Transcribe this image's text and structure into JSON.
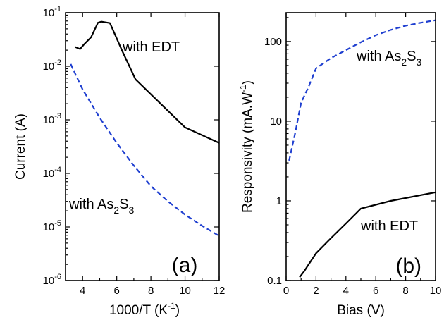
{
  "chart_data": [
    {
      "type": "line",
      "panel_label": "(a)",
      "xlabel_main": "1000/T (K",
      "xlabel_sup": "-1",
      "xlabel_end": ")",
      "ylabel": "Current (A)",
      "xlim": [
        3,
        12
      ],
      "ylim": [
        1e-06,
        0.1
      ],
      "yscale": "log",
      "x_ticks": [
        4,
        6,
        8,
        10,
        12
      ],
      "x_tick_labels": [
        "4",
        "6",
        "8",
        "10",
        "12"
      ],
      "y_ticks": [
        1e-06,
        1e-05,
        0.0001,
        0.001,
        0.01,
        0.1
      ],
      "y_tick_base": "10",
      "y_tick_exps": [
        "-6",
        "-5",
        "-4",
        "-3",
        "-2",
        "-1"
      ],
      "series": [
        {
          "key": "edt",
          "color": "#000000",
          "dash": "solid",
          "label_text": "with EDT",
          "x": [
            3.55,
            3.85,
            4.1,
            4.5,
            4.9,
            5.1,
            5.6,
            6.3,
            7.1,
            10.0,
            12.0
          ],
          "y": [
            0.023,
            0.021,
            0.026,
            0.035,
            0.065,
            0.068,
            0.064,
            0.02,
            0.0057,
            0.00072,
            0.00037
          ]
        },
        {
          "key": "as2s3",
          "color": "#1f3fd0",
          "dash": "dashed",
          "label_parts": [
            "with As",
            "2",
            "S",
            "3"
          ],
          "x": [
            3.3,
            4.0,
            5.0,
            6.0,
            7.0,
            8.0,
            9.0,
            10.0,
            11.0,
            12.0
          ],
          "y": [
            0.011,
            0.0037,
            0.0011,
            0.00037,
            0.00014,
            5.8e-05,
            3e-05,
            1.7e-05,
            1.05e-05,
            6.8e-06
          ]
        }
      ]
    },
    {
      "type": "line",
      "panel_label": "(b)",
      "xlabel": "Bias (V)",
      "ylabel_main": "Responsivity (mA.W",
      "ylabel_sup": "-1",
      "ylabel_end": ")",
      "xlim": [
        0,
        10
      ],
      "ylim": [
        0.1,
        230
      ],
      "yscale": "log",
      "x_ticks": [
        0,
        2,
        4,
        6,
        8,
        10
      ],
      "x_tick_labels": [
        "0",
        "2",
        "4",
        "6",
        "8",
        "10"
      ],
      "y_ticks": [
        0.1,
        1,
        10,
        100
      ],
      "y_tick_labels": [
        "0.1",
        "1",
        "10",
        "100"
      ],
      "series": [
        {
          "key": "edt",
          "color": "#000000",
          "dash": "solid",
          "label_text": "with EDT",
          "x": [
            0.9,
            1.2,
            2.0,
            3.0,
            4.0,
            5.0,
            7.0,
            10.0
          ],
          "y": [
            0.11,
            0.13,
            0.22,
            0.34,
            0.52,
            0.8,
            1.0,
            1.28
          ]
        },
        {
          "key": "as2s3",
          "color": "#1f3fd0",
          "dash": "dashed",
          "label_parts": [
            "with As",
            "2",
            "S",
            "3"
          ],
          "x": [
            0.2,
            0.6,
            1.0,
            1.5,
            2.0,
            3.0,
            4.0,
            5.0,
            6.0,
            7.0,
            8.0,
            9.0,
            10.0
          ],
          "y": [
            3.2,
            7.0,
            17.0,
            27.0,
            46.0,
            62.0,
            78.0,
            98.0,
            120.0,
            140.0,
            158.0,
            172.0,
            185.0
          ]
        }
      ]
    }
  ]
}
